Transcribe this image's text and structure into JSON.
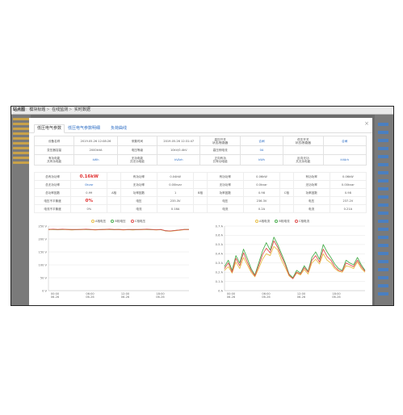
{
  "breadcrumb": [
    "站点图",
    "模块标题",
    "在线监测",
    "实时数据"
  ],
  "modal": {
    "close": "×",
    "tabs": [
      "低压电气参数",
      "低压电气参数明细",
      "负荷曲线"
    ]
  },
  "grid_rows": [
    [
      "设备名称",
      "2019.05.26 12:08:26",
      "采集时间",
      "2019.05.26 12:31:47",
      "高压开关\n状态/断路器",
      "合闸",
      "低压开关\n状态/断路器",
      "合闸"
    ],
    [
      "变压器容量",
      "2000kVA",
      "电压等级",
      "10kV/0.4kV",
      "高压侧电流",
      "0A",
      "",
      ""
    ],
    [
      "有功电能\n共有功电能",
      "kWh",
      "无功电能\n共无功电能",
      "kVArh",
      "正向有功\n共有功电能",
      "kWh",
      "反向无功\n共无功电能",
      "kVArh"
    ]
  ],
  "params_rows": [
    [
      "总有功功率",
      "0.16kW",
      "",
      "有功功率",
      "0.04kW",
      "",
      "有功功率",
      "0.06kW",
      "",
      "有功功率",
      "0.06kW"
    ],
    [
      "总无功功率",
      "0kvar",
      "",
      "无功功率",
      "0.00kvar",
      "",
      "无功功率",
      "0.0kvar",
      "",
      "无功功率",
      "0.00kvar"
    ],
    [
      "总功率因数",
      "0.99",
      "A相",
      "功率因数",
      "1",
      "B相",
      "功率因数",
      "0.98",
      "C相",
      "功率因数",
      "0.98"
    ],
    [
      "电压不平衡度",
      "0%",
      "",
      "电压",
      "235.3V",
      "",
      "电压",
      "236.3V",
      "",
      "电压",
      "237.2V"
    ],
    [
      "电流不平衡度",
      "0%",
      "",
      "电流",
      "0.16A",
      "",
      "电流",
      "0.2A",
      "",
      "电流",
      "0.21A"
    ]
  ],
  "colors": {
    "phase_a": "#e8c04a",
    "phase_b": "#4caf50",
    "phase_c": "#e05050",
    "accent": "#2f6fc5"
  },
  "chart_data": [
    {
      "type": "line",
      "legend": [
        "A相电压",
        "B相电压",
        "C相电压"
      ],
      "ylim": [
        0,
        250
      ],
      "y_ticks": [
        "250 V",
        "200 V",
        "150 V",
        "100 V",
        "50 V",
        "0 V"
      ],
      "x_ticks": [
        "00:00\n06-26",
        "06:00\n06-26",
        "12:00\n06-26",
        "18:00\n06-26"
      ],
      "series": [
        {
          "name": "A相电压",
          "values": [
            236,
            237,
            236,
            237,
            236,
            235,
            236,
            236,
            237,
            236,
            235,
            236,
            236,
            237,
            236,
            236,
            235,
            236,
            235,
            236,
            236,
            237,
            236,
            235,
            236,
            231,
            230,
            232,
            234,
            236,
            236
          ]
        },
        {
          "name": "B相电压",
          "values": [
            237,
            237,
            236,
            237,
            237,
            236,
            236,
            237,
            237,
            236,
            236,
            236,
            237,
            237,
            236,
            237,
            236,
            236,
            236,
            236,
            237,
            237,
            236,
            236,
            236,
            232,
            231,
            233,
            235,
            237,
            237
          ]
        },
        {
          "name": "C相电压",
          "values": [
            237,
            238,
            237,
            238,
            237,
            237,
            237,
            237,
            238,
            237,
            236,
            237,
            237,
            238,
            237,
            237,
            236,
            237,
            237,
            237,
            237,
            238,
            237,
            236,
            237,
            232,
            231,
            233,
            235,
            237,
            237
          ]
        }
      ]
    },
    {
      "type": "line",
      "legend": [
        "A相电流",
        "B相电流",
        "C相电流"
      ],
      "ylim": [
        0,
        0.7
      ],
      "y_ticks": [
        "0.7 A",
        "0.6 A",
        "0.5 A",
        "0.4 A",
        "0.3 A",
        "0.2 A",
        "0.1 A",
        "0 A"
      ],
      "x_ticks": [
        "00:00\n06-26",
        "06:00\n06-26",
        "12:00\n06-26",
        "18:00\n06-26"
      ],
      "series": [
        {
          "name": "A相电流",
          "values": [
            0.22,
            0.26,
            0.19,
            0.31,
            0.24,
            0.36,
            0.28,
            0.2,
            0.15,
            0.24,
            0.34,
            0.4,
            0.38,
            0.48,
            0.44,
            0.33,
            0.25,
            0.16,
            0.13,
            0.19,
            0.17,
            0.23,
            0.18,
            0.3,
            0.34,
            0.29,
            0.4,
            0.33,
            0.3,
            0.24,
            0.21,
            0.2,
            0.27,
            0.26,
            0.24,
            0.31,
            0.24,
            0.2
          ]
        },
        {
          "name": "B相电流",
          "values": [
            0.26,
            0.33,
            0.22,
            0.38,
            0.3,
            0.45,
            0.35,
            0.24,
            0.17,
            0.3,
            0.43,
            0.52,
            0.44,
            0.58,
            0.5,
            0.4,
            0.3,
            0.18,
            0.14,
            0.22,
            0.19,
            0.27,
            0.21,
            0.36,
            0.42,
            0.34,
            0.5,
            0.42,
            0.36,
            0.29,
            0.24,
            0.22,
            0.33,
            0.3,
            0.28,
            0.36,
            0.28,
            0.22
          ]
        },
        {
          "name": "C相电流",
          "values": [
            0.24,
            0.3,
            0.2,
            0.35,
            0.27,
            0.41,
            0.31,
            0.22,
            0.16,
            0.27,
            0.39,
            0.46,
            0.41,
            0.54,
            0.47,
            0.37,
            0.28,
            0.17,
            0.13,
            0.2,
            0.18,
            0.25,
            0.2,
            0.33,
            0.38,
            0.31,
            0.45,
            0.37,
            0.33,
            0.26,
            0.22,
            0.21,
            0.3,
            0.28,
            0.26,
            0.33,
            0.26,
            0.21
          ]
        }
      ]
    }
  ]
}
